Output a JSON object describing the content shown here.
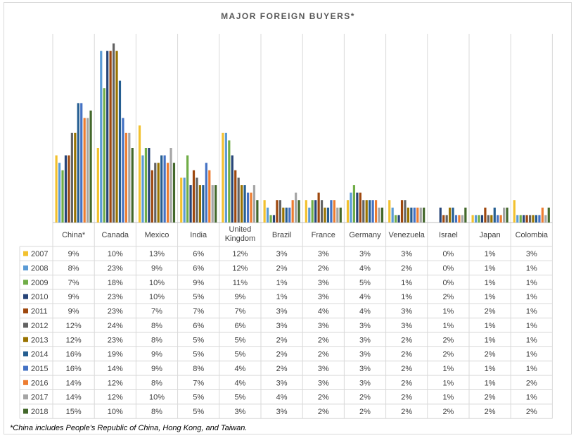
{
  "chart_data": {
    "type": "bar",
    "title": "MAJOR FOREIGN BUYERS*",
    "categories": [
      "China*",
      "Canada",
      "Mexico",
      "India",
      "United Kingdom",
      "Brazil",
      "France",
      "Germany",
      "Venezuela",
      "Israel",
      "Japan",
      "Colombia"
    ],
    "unit": "%",
    "ylim": [
      0,
      24
    ],
    "series": [
      {
        "name": "2007",
        "color": "#f2c12e",
        "values": [
          9,
          10,
          13,
          6,
          12,
          3,
          3,
          3,
          3,
          0,
          1,
          3
        ]
      },
      {
        "name": "2008",
        "color": "#5b9bd5",
        "values": [
          8,
          23,
          9,
          6,
          12,
          2,
          2,
          4,
          2,
          0,
          1,
          1
        ]
      },
      {
        "name": "2009",
        "color": "#70ad47",
        "values": [
          7,
          18,
          10,
          9,
          11,
          1,
          3,
          5,
          1,
          0,
          1,
          1
        ]
      },
      {
        "name": "2010",
        "color": "#264478",
        "values": [
          9,
          23,
          10,
          5,
          9,
          1,
          3,
          4,
          1,
          2,
          1,
          1
        ]
      },
      {
        "name": "2011",
        "color": "#9e480e",
        "values": [
          9,
          23,
          7,
          7,
          7,
          3,
          4,
          4,
          3,
          1,
          2,
          1
        ]
      },
      {
        "name": "2012",
        "color": "#636363",
        "values": [
          12,
          24,
          8,
          6,
          6,
          3,
          3,
          3,
          3,
          1,
          1,
          1
        ]
      },
      {
        "name": "2013",
        "color": "#997300",
        "values": [
          12,
          23,
          8,
          5,
          5,
          2,
          2,
          3,
          2,
          2,
          1,
          1
        ]
      },
      {
        "name": "2014",
        "color": "#255e91",
        "values": [
          16,
          19,
          9,
          5,
          5,
          2,
          2,
          3,
          2,
          2,
          2,
          1
        ]
      },
      {
        "name": "2015",
        "color": "#4472c4",
        "values": [
          16,
          14,
          9,
          8,
          4,
          2,
          3,
          3,
          2,
          1,
          1,
          1
        ]
      },
      {
        "name": "2016",
        "color": "#ed7d31",
        "values": [
          14,
          12,
          8,
          7,
          4,
          3,
          3,
          3,
          2,
          1,
          1,
          2
        ]
      },
      {
        "name": "2017",
        "color": "#a5a5a5",
        "values": [
          14,
          12,
          10,
          5,
          5,
          4,
          2,
          2,
          2,
          1,
          2,
          1
        ]
      },
      {
        "name": "2018",
        "color": "#43682b",
        "values": [
          15,
          10,
          8,
          5,
          3,
          3,
          2,
          2,
          2,
          2,
          2,
          2
        ]
      }
    ],
    "table_values": [
      [
        "9%",
        "10%",
        "13%",
        "6%",
        "12%",
        "3%",
        "3%",
        "3%",
        "3%",
        "0%",
        "1%",
        "3%"
      ],
      [
        "8%",
        "23%",
        "9%",
        "6%",
        "12%",
        "2%",
        "2%",
        "4%",
        "2%",
        "0%",
        "1%",
        "1%"
      ],
      [
        "7%",
        "18%",
        "10%",
        "9%",
        "11%",
        "1%",
        "3%",
        "5%",
        "1%",
        "0%",
        "1%",
        "1%"
      ],
      [
        "9%",
        "23%",
        "10%",
        "5%",
        "9%",
        "1%",
        "3%",
        "4%",
        "1%",
        "2%",
        "1%",
        "1%"
      ],
      [
        "9%",
        "23%",
        "7%",
        "7%",
        "7%",
        "3%",
        "4%",
        "4%",
        "3%",
        "1%",
        "2%",
        "1%"
      ],
      [
        "12%",
        "24%",
        "8%",
        "6%",
        "6%",
        "3%",
        "3%",
        "3%",
        "3%",
        "1%",
        "1%",
        "1%"
      ],
      [
        "12%",
        "23%",
        "8%",
        "5%",
        "5%",
        "2%",
        "2%",
        "3%",
        "2%",
        "2%",
        "1%",
        "1%"
      ],
      [
        "16%",
        "19%",
        "9%",
        "5%",
        "5%",
        "2%",
        "2%",
        "3%",
        "2%",
        "2%",
        "2%",
        "1%"
      ],
      [
        "16%",
        "14%",
        "9%",
        "8%",
        "4%",
        "2%",
        "3%",
        "3%",
        "2%",
        "1%",
        "1%",
        "1%"
      ],
      [
        "14%",
        "12%",
        "8%",
        "7%",
        "4%",
        "3%",
        "3%",
        "3%",
        "2%",
        "1%",
        "1%",
        "2%"
      ],
      [
        "14%",
        "12%",
        "10%",
        "5%",
        "5%",
        "4%",
        "2%",
        "2%",
        "2%",
        "1%",
        "2%",
        "1%"
      ],
      [
        "15%",
        "10%",
        "8%",
        "5%",
        "3%",
        "3%",
        "2%",
        "2%",
        "2%",
        "2%",
        "2%",
        "2%"
      ]
    ],
    "grid": true,
    "legend": "data table left"
  },
  "footnote": "*China includes People's Republic of China, Hong Kong, and Taiwan."
}
